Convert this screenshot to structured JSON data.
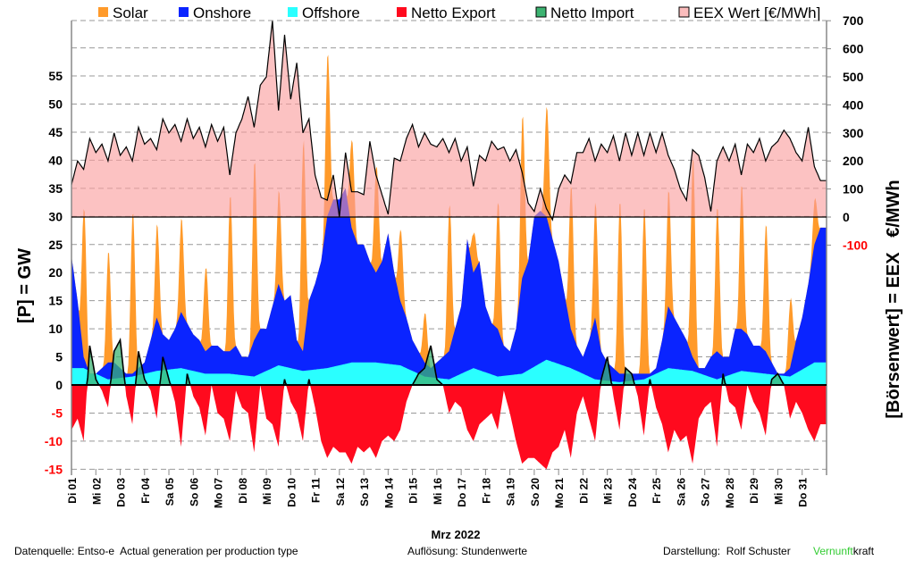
{
  "chart_data": {
    "type": "area",
    "title": "",
    "legend": [
      {
        "label": "Solar",
        "color": "#ff9a2a"
      },
      {
        "label": "Onshore",
        "color": "#0a24ff"
      },
      {
        "label": "Offshore",
        "color": "#2affff"
      },
      {
        "label": "Netto Export",
        "color": "#ff0a1e"
      },
      {
        "label": "Netto Import",
        "color": "#3cb371"
      },
      {
        "label": "EEX Wert [€/MWh]",
        "color": "#fbbcbc"
      }
    ],
    "legend_position": "top",
    "ylabel_left": "[P] = GW",
    "ylabel_right": "[Börsenwert] = EEX   €/MWh",
    "xlabel": "Mrz 2022",
    "y_left_ticks": [
      -15,
      -10,
      -5,
      0,
      5,
      10,
      15,
      20,
      25,
      30,
      35,
      40,
      45,
      50,
      55
    ],
    "y_right_ticks": [
      -100,
      0,
      100,
      200,
      300,
      400,
      500,
      600,
      700
    ],
    "ylim_left": [
      -15,
      65
    ],
    "ylim_right": [
      -100,
      700
    ],
    "grid": true,
    "x_tick_labels": [
      "Di 01",
      "Mi 02",
      "Do 03",
      "Fr 04",
      "Sa 05",
      "So 06",
      "Mo 07",
      "Di 08",
      "Mi 09",
      "Do 10",
      "Fr 11",
      "Sa 12",
      "So 13",
      "Mo 14",
      "Di 15",
      "Mi 16",
      "Do 17",
      "Fr 18",
      "Sa 19",
      "So 20",
      "Mo 21",
      "Di 22",
      "Mi 23",
      "Do 24",
      "Fr 25",
      "Sa 26",
      "So 27",
      "Mo 28",
      "Di 29",
      "Mi 30",
      "Do 31"
    ],
    "solar_peak_gw": [
      27,
      20,
      29,
      17,
      17,
      15,
      28,
      32,
      17,
      37,
      29,
      16,
      19,
      13,
      9,
      26,
      7,
      23,
      29,
      20,
      26,
      21,
      31,
      30,
      21,
      36,
      26,
      26,
      23,
      12,
      8
    ],
    "offshore_gw_daily": [
      3,
      1,
      1.5,
      2.5,
      3,
      2,
      2,
      1.5,
      3.5,
      2.5,
      3,
      4,
      4,
      3.5,
      1.5,
      1,
      3,
      1.5,
      2,
      4.5,
      3,
      1,
      0.5,
      1,
      3,
      2.5,
      1,
      2.5,
      2,
      1.5,
      4
    ],
    "onshore_stack_top_gw_6h": [
      23,
      15,
      5,
      2,
      2,
      3,
      4,
      4,
      3,
      2,
      2,
      3,
      4,
      8,
      12,
      9,
      8,
      10,
      13,
      11,
      9,
      8,
      6,
      7,
      7,
      6,
      6,
      7,
      5,
      5,
      8,
      10,
      10,
      14,
      18,
      15,
      16,
      8,
      6,
      15,
      18,
      22,
      30,
      33,
      33,
      35,
      28,
      25,
      25,
      22,
      20,
      22,
      27,
      20,
      15,
      12,
      8,
      6,
      4,
      3,
      4,
      5,
      6,
      10,
      14,
      26,
      20,
      22,
      14,
      11,
      10,
      7,
      6,
      10,
      19,
      22,
      30,
      31,
      30,
      26,
      22,
      16,
      10,
      7,
      5,
      8,
      12,
      6,
      4,
      3,
      2,
      2,
      2,
      2,
      2,
      2,
      3,
      8,
      14,
      12,
      10,
      8,
      5,
      3,
      3,
      5,
      6,
      5,
      5,
      10,
      10,
      9,
      7,
      7,
      6,
      4,
      2,
      2,
      3,
      8,
      12,
      18,
      25,
      28
    ],
    "netto_gw_6h": [
      -8,
      -6,
      -10,
      7,
      1,
      -1,
      -4,
      6,
      8,
      -2,
      -7,
      6,
      1,
      -1,
      -6,
      5,
      1,
      -3,
      -11,
      2,
      -2,
      -4,
      -9,
      0,
      -5,
      -6,
      -10,
      -1,
      -4,
      -5,
      -12,
      0,
      -6,
      -7,
      -11,
      1,
      -3,
      -5,
      -10,
      1,
      -4,
      -10,
      -13,
      -11,
      -12,
      -12,
      -14,
      -11,
      -12,
      -11,
      -13,
      -10,
      -9,
      -10,
      -8,
      -3,
      0,
      2,
      3,
      7,
      1,
      0,
      -5,
      -3,
      -4,
      -8,
      -10,
      -7,
      -6,
      -5,
      -8,
      -1,
      -5,
      -10,
      -14,
      -13,
      -13,
      -14,
      -15,
      -12,
      -11,
      -8,
      -13,
      -5,
      -2,
      -6,
      -10,
      1,
      5,
      -2,
      -8,
      3,
      2,
      -2,
      -9,
      1,
      -4,
      -7,
      -12,
      -8,
      -10,
      -9,
      -14,
      -6,
      -4,
      -3,
      -11,
      2,
      -3,
      -4,
      -8,
      0,
      -3,
      -5,
      -9,
      1,
      2,
      0,
      -6,
      -3,
      -5,
      -8,
      -10,
      -7
    ],
    "eex_eur_mwh_6h": [
      115,
      200,
      170,
      280,
      230,
      260,
      200,
      300,
      220,
      250,
      200,
      320,
      260,
      280,
      240,
      350,
      300,
      330,
      270,
      350,
      280,
      320,
      250,
      330,
      270,
      320,
      150,
      300,
      350,
      430,
      320,
      470,
      500,
      700,
      380,
      650,
      420,
      550,
      300,
      350,
      150,
      70,
      60,
      150,
      0,
      230,
      90,
      90,
      80,
      270,
      150,
      80,
      10,
      210,
      200,
      280,
      330,
      250,
      300,
      260,
      250,
      280,
      230,
      280,
      200,
      250,
      110,
      220,
      200,
      270,
      240,
      250,
      200,
      240,
      160,
      50,
      20,
      100,
      30,
      -10,
      100,
      150,
      120,
      230,
      230,
      280,
      200,
      260,
      230,
      290,
      200,
      300,
      220,
      300,
      220,
      300,
      230,
      300,
      220,
      170,
      100,
      60,
      240,
      220,
      140,
      20,
      200,
      250,
      200,
      260,
      150,
      260,
      230,
      280,
      200,
      250,
      270,
      310,
      280,
      230,
      200,
      320,
      180,
      130
    ]
  },
  "footer": {
    "source": "Datenquelle: Entso-e  Actual generation per production type",
    "resolution": "Auflösung: Stundenwerte",
    "author": "Darstellung:  Rolf Schuster",
    "brand_green": "Vernunft",
    "brand_black": "kraft"
  }
}
